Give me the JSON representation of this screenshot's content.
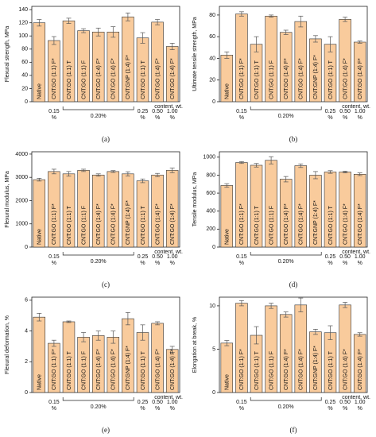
{
  "chart_data": [
    {
      "type": "bar",
      "ylabel": "Flexural strength, MPa",
      "label": "(a)",
      "categories": [
        "Native",
        "CNT:GO (1:1) F*",
        "CNT:GO (1:1) T",
        "CNT:GO (1:1) F",
        "CNT:GO (1:4) F*",
        "CNT:GO (1:4) F*",
        "CNT:GNP (1:4) F*",
        "CNT:GO (1:1) T",
        "CNT:GO (1:4) F*",
        "CNT:GO (1:4) F*"
      ],
      "values": [
        120,
        93,
        123,
        108,
        106,
        106,
        129,
        97,
        121,
        84
      ],
      "errors": [
        5,
        6,
        4,
        3,
        6,
        8,
        6,
        8,
        4,
        5
      ],
      "ylim": [
        0,
        145
      ],
      "yticks": [
        0,
        20,
        40,
        60,
        80,
        100,
        120,
        140
      ],
      "color": "#f9cb9c",
      "x_groups": [
        {
          "lines": [
            "0.15",
            "%"
          ]
        },
        {
          "lines": [
            "0.20%"
          ]
        },
        {
          "lines": [
            "0.25",
            "%"
          ]
        },
        {
          "lines": [
            "0.50",
            "%"
          ]
        },
        {
          "lines": [
            "1.00",
            "%"
          ]
        }
      ],
      "xlabel": "content, wt."
    },
    {
      "type": "bar",
      "ylabel": "Ultimate tensile strength, MPa",
      "label": "(b)",
      "categories": [
        "Native",
        "CNT:GO (1:1) F*",
        "CNT:GO (1:1) T",
        "CNT:GO (1:1) F",
        "CNT:GO (1:4) F*",
        "CNT:GO (1:4) F*",
        "CNT:GNP (1:4) F*",
        "CNT:GO (1:1) T",
        "CNT:GO (1:4) F*",
        "CNT:GO (1:4) F*"
      ],
      "values": [
        43,
        81,
        53,
        79,
        64,
        74,
        58,
        53,
        76,
        55
      ],
      "errors": [
        3,
        2,
        7,
        1,
        2,
        5,
        3,
        7,
        2,
        1
      ],
      "ylim": [
        0,
        88
      ],
      "yticks": [
        0,
        20,
        40,
        60,
        80
      ],
      "color": "#f9cb9c",
      "x_groups": [
        {
          "lines": [
            "0.15",
            "%"
          ]
        },
        {
          "lines": [
            "0.20%"
          ]
        },
        {
          "lines": [
            "0.25",
            "%"
          ]
        },
        {
          "lines": [
            "0.50",
            "%"
          ]
        },
        {
          "lines": [
            "1.00",
            "%"
          ]
        }
      ],
      "xlabel": "content, wt."
    },
    {
      "type": "bar",
      "ylabel": "Flexural modulus, MPa",
      "label": "(c)",
      "categories": [
        "Native",
        "CNT:GO (1:1) F*",
        "CNT:GO (1:1) T",
        "CNT:GO (1:1) F",
        "CNT:GO (1:4) F*",
        "CNT:GO (1:4) F*",
        "CNT:GNP (1:4) F*",
        "CNT:GO (1:1) T",
        "CNT:GO (1:4) F*",
        "CNT:GO (1:4) F*"
      ],
      "values": [
        2900,
        3250,
        3150,
        3300,
        3100,
        3250,
        3150,
        2850,
        3100,
        3300
      ],
      "errors": [
        60,
        100,
        100,
        50,
        50,
        40,
        90,
        80,
        70,
        100
      ],
      "ylim": [
        0,
        4100
      ],
      "yticks": [
        0,
        1000,
        2000,
        3000,
        4000
      ],
      "color": "#f9cb9c",
      "x_groups": [
        {
          "lines": [
            "0.15",
            "%"
          ]
        },
        {
          "lines": [
            "0.20%"
          ]
        },
        {
          "lines": [
            "0.25",
            "%"
          ]
        },
        {
          "lines": [
            "0.50",
            "%"
          ]
        },
        {
          "lines": [
            "1.00",
            "%"
          ]
        }
      ],
      "xlabel": "content, wt."
    },
    {
      "type": "bar",
      "ylabel": "Tensile modulus, MPa",
      "label": "(d)",
      "categories": [
        "Native",
        "CNT:GO (1:1) F*",
        "CNT:GO (1:1) T",
        "CNT:GO (1:1) F",
        "CNT:GO (1:4) F*",
        "CNT:GO (1:4) F*",
        "CNT:GNP (1:4) F*",
        "CNT:GO (1:1) T",
        "CNT:GO (1:4) F*",
        "CNT:GO (1:4) F*"
      ],
      "values": [
        685,
        940,
        910,
        965,
        755,
        905,
        800,
        835,
        835,
        810
      ],
      "errors": [
        20,
        10,
        20,
        40,
        30,
        20,
        40,
        15,
        10,
        15
      ],
      "ylim": [
        0,
        1060
      ],
      "yticks": [
        0,
        200,
        400,
        600,
        800,
        1000
      ],
      "color": "#f9cb9c",
      "x_groups": [
        {
          "lines": [
            "0.15",
            "%"
          ]
        },
        {
          "lines": [
            "0.20%"
          ]
        },
        {
          "lines": [
            "0.25",
            "%"
          ]
        },
        {
          "lines": [
            "0.50",
            "%"
          ]
        },
        {
          "lines": [
            "1.00",
            "%"
          ]
        }
      ],
      "xlabel": "content, wt."
    },
    {
      "type": "bar",
      "ylabel": "Flexural deformation, %",
      "label": "(e)",
      "categories": [
        "Native",
        "CNT:GO (1:1) F*",
        "CNT:GO (1:1) T",
        "CNT:GO (1:1) F",
        "CNT:GO (1:4) F*",
        "CNT:GO (1:4) F*",
        "CNT:GNP (1:4) F*",
        "CNT:GO (1:1) T",
        "CNT:GO (1:4) F*",
        "CNT:GO (1:4) F*"
      ],
      "values": [
        4.9,
        3.2,
        4.6,
        3.6,
        3.7,
        3.6,
        4.8,
        3.9,
        4.5,
        2.8
      ],
      "errors": [
        0.25,
        0.2,
        0.05,
        0.3,
        0.3,
        0.4,
        0.4,
        0.5,
        0.1,
        0.2
      ],
      "ylim": [
        0,
        6.2
      ],
      "yticks": [
        0,
        2,
        4,
        6
      ],
      "color": "#f9cb9c",
      "x_groups": [
        {
          "lines": [
            "0.15",
            "%"
          ]
        },
        {
          "lines": [
            "0.20%"
          ]
        },
        {
          "lines": [
            "0.25",
            "%"
          ]
        },
        {
          "lines": [
            "0.50",
            "%"
          ]
        },
        {
          "lines": [
            "1.00",
            "%"
          ]
        }
      ],
      "xlabel": "content, wt."
    },
    {
      "type": "bar",
      "ylabel": "Elongation at break, %",
      "label": "(f)",
      "categories": [
        "Native",
        "CNT:GO (1:1) F*",
        "CNT:GO (1:1) T",
        "CNT:GO (1:1) F",
        "CNT:GO (1:4) F*",
        "CNT:GO (1:4) F*",
        "CNT:GNP (1:4) F*",
        "CNT:GO (1:1) T",
        "CNT:GO (1:4) F*",
        "CNT:GO (1:4) F*"
      ],
      "values": [
        5.7,
        10.3,
        6.6,
        10.0,
        9.0,
        10.1,
        7.0,
        6.9,
        10.1,
        6.7
      ],
      "errors": [
        0.3,
        0.3,
        1.0,
        0.3,
        0.3,
        0.8,
        0.3,
        0.8,
        0.3,
        0.2
      ],
      "ylim": [
        0,
        11
      ],
      "yticks": [
        0,
        5,
        10
      ],
      "color": "#f9cb9c",
      "x_groups": [
        {
          "lines": [
            "0.15",
            "%"
          ]
        },
        {
          "lines": [
            "0.20%"
          ]
        },
        {
          "lines": [
            "0.25",
            "%"
          ]
        },
        {
          "lines": [
            "0.50",
            "%"
          ]
        },
        {
          "lines": [
            "1.00",
            "%"
          ]
        }
      ],
      "xlabel": "content, wt."
    }
  ]
}
